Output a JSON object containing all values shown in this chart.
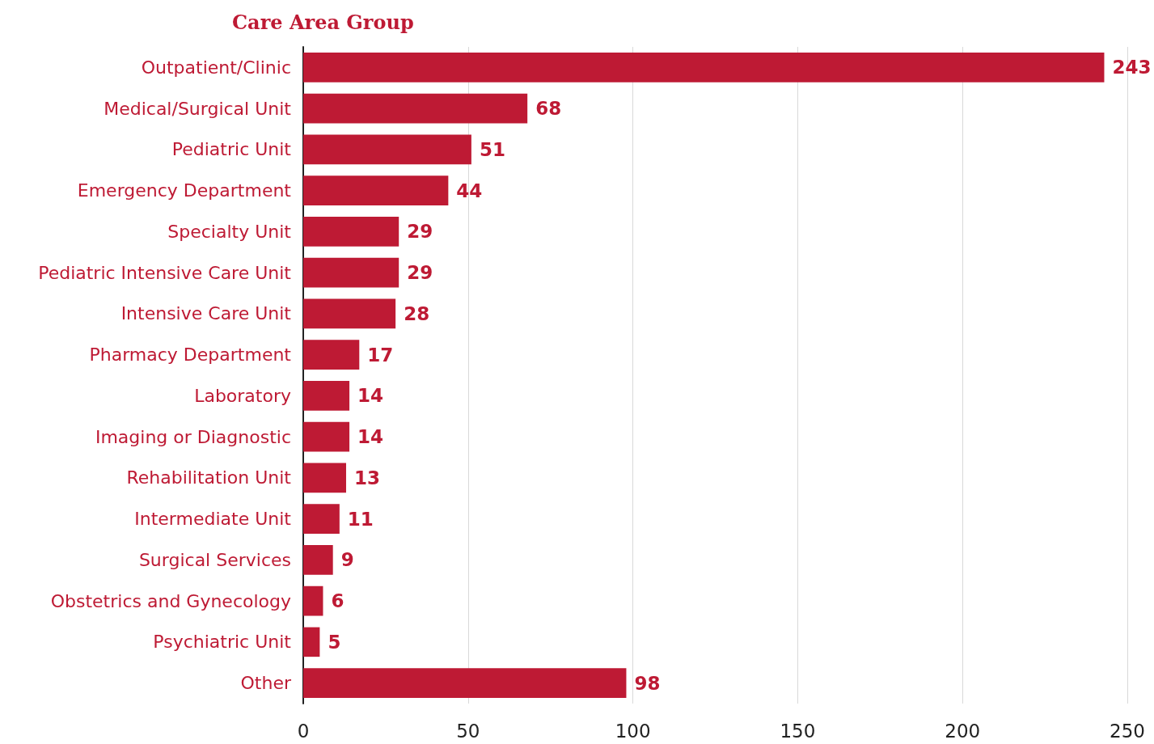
{
  "chart_data": {
    "type": "bar",
    "orientation": "horizontal",
    "title": "Care Area Group",
    "categories": [
      "Outpatient/Clinic",
      "Medical/Surgical Unit",
      "Pediatric Unit",
      "Emergency Department",
      "Specialty Unit",
      "Pediatric Intensive Care Unit",
      "Intensive Care Unit",
      "Pharmacy Department",
      "Laboratory",
      "Imaging or Diagnostic",
      "Rehabilitation Unit",
      "Intermediate Unit",
      "Surgical Services",
      "Obstetrics and Gynecology",
      "Psychiatric Unit",
      "Other"
    ],
    "values": [
      243,
      68,
      51,
      44,
      29,
      29,
      28,
      17,
      14,
      14,
      13,
      11,
      9,
      6,
      5,
      98
    ],
    "color": "#be1a34",
    "xlim": [
      0,
      250
    ],
    "xticks": [
      0,
      50,
      100,
      150,
      200,
      250
    ],
    "grid": "x",
    "data_labels": true
  }
}
